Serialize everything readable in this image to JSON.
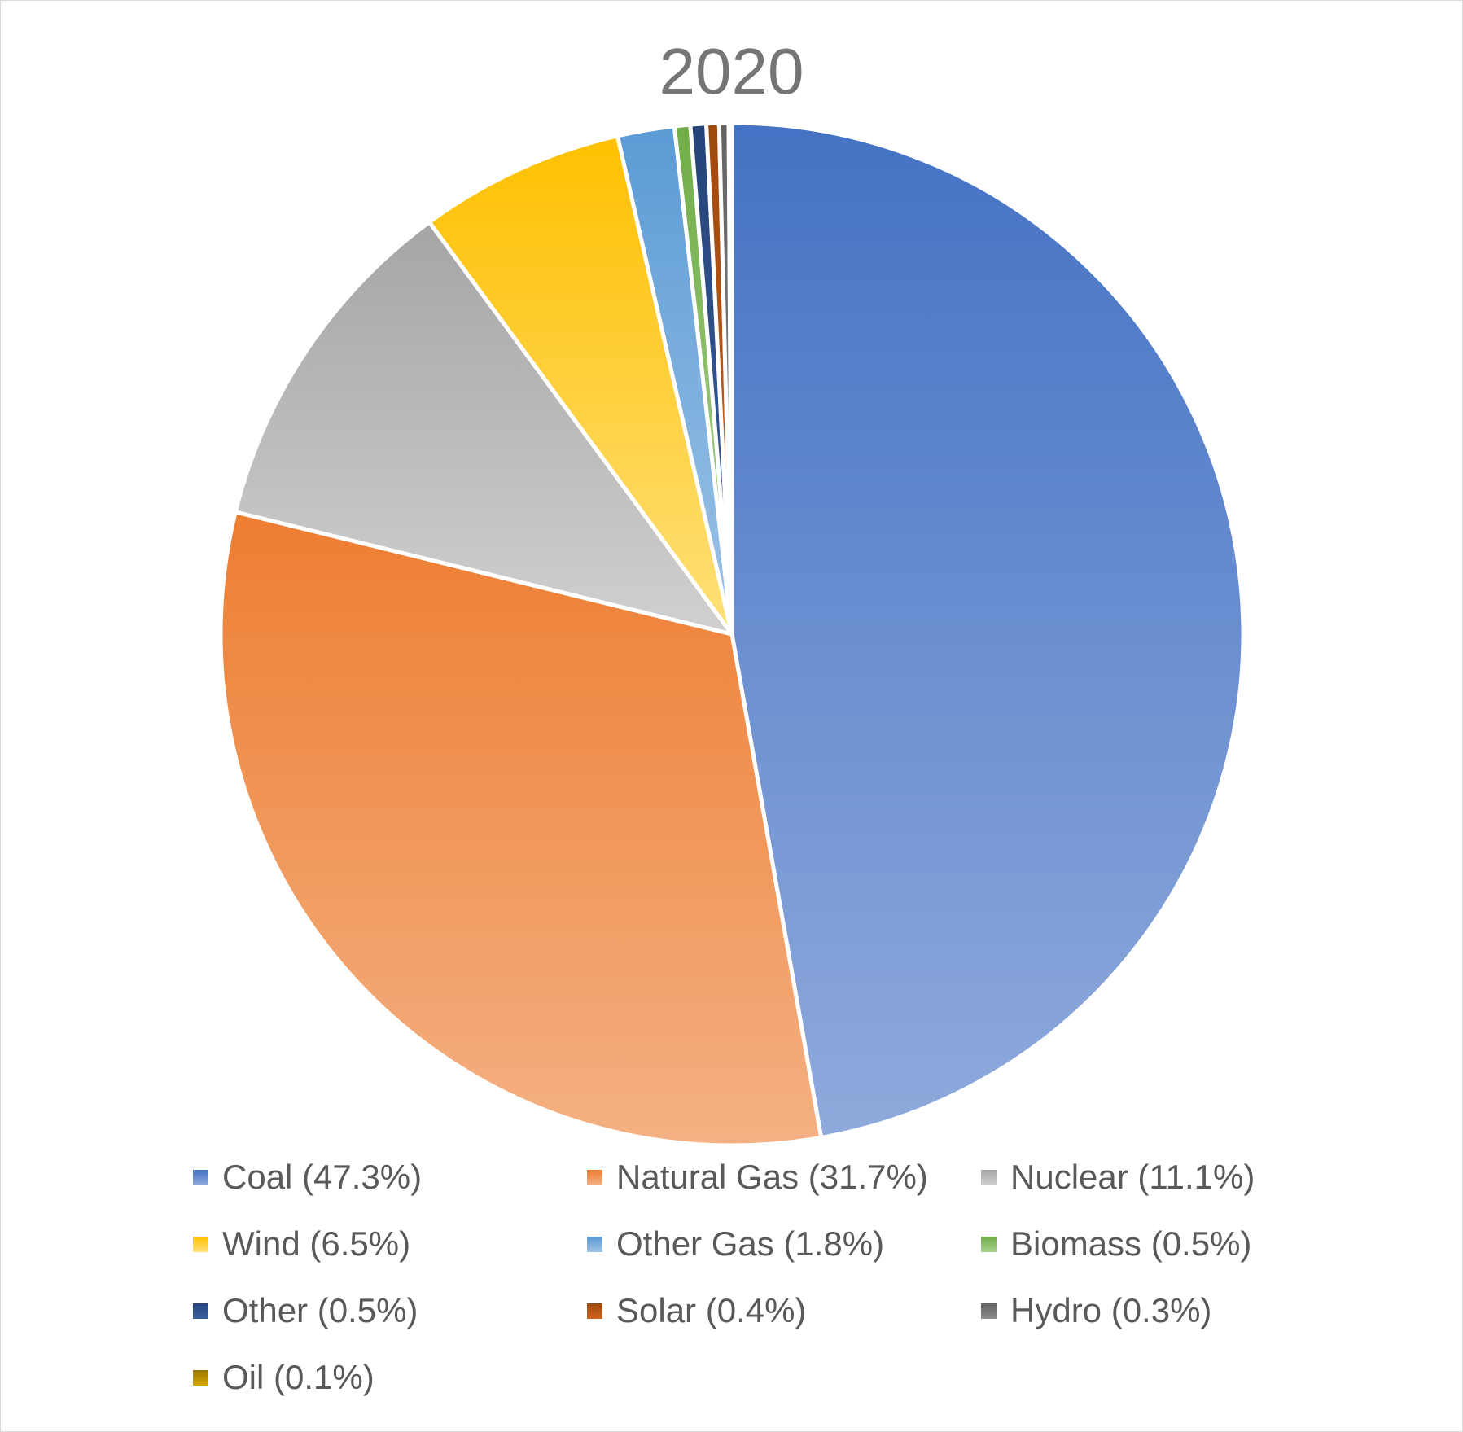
{
  "chart_data": {
    "type": "pie",
    "title": "2020",
    "slices": [
      {
        "name": "Coal",
        "label": "Coal (47.3%)",
        "value": 47.3,
        "color": "#4472C4",
        "color_light": "#8FAADC"
      },
      {
        "name": "Natural Gas",
        "label": "Natural Gas (31.7%)",
        "value": 31.7,
        "color": "#ED7D31",
        "color_light": "#F4B183"
      },
      {
        "name": "Nuclear",
        "label": "Nuclear (11.1%)",
        "value": 11.1,
        "color": "#A5A5A5",
        "color_light": "#D0D0D0"
      },
      {
        "name": "Wind",
        "label": "Wind (6.5%)",
        "value": 6.5,
        "color": "#FFC000",
        "color_light": "#FFE07A"
      },
      {
        "name": "Other Gas",
        "label": "Other Gas (1.8%)",
        "value": 1.8,
        "color": "#5B9BD5",
        "color_light": "#9DC3E6"
      },
      {
        "name": "Biomass",
        "label": "Biomass (0.5%)",
        "value": 0.5,
        "color": "#70AD47",
        "color_light": "#A9D18E"
      },
      {
        "name": "Other",
        "label": "Other (0.5%)",
        "value": 0.5,
        "color": "#264478",
        "color_light": "#3A5FA0"
      },
      {
        "name": "Solar",
        "label": "Solar (0.4%)",
        "value": 0.4,
        "color": "#9E480E",
        "color_light": "#D0651E"
      },
      {
        "name": "Hydro",
        "label": "Hydro (0.3%)",
        "value": 0.3,
        "color": "#636363",
        "color_light": "#8C8C8C"
      },
      {
        "name": "Oil",
        "label": "Oil (0.1%)",
        "value": 0.1,
        "color": "#997300",
        "color_light": "#D4A500"
      }
    ],
    "legend_position": "bottom",
    "start_angle": "12 o'clock",
    "direction": "clockwise"
  }
}
